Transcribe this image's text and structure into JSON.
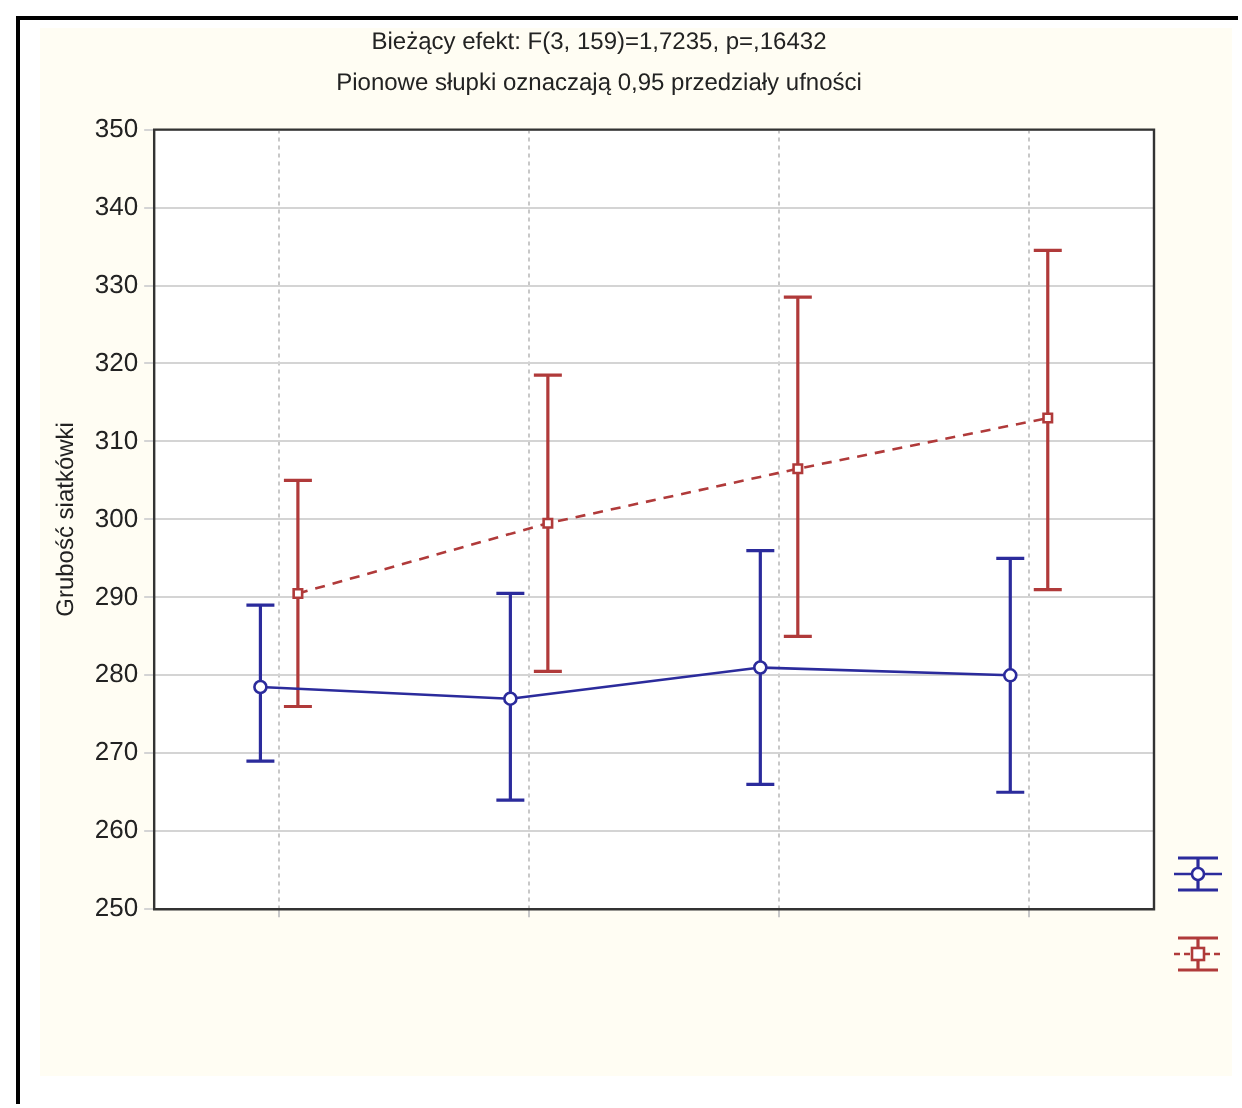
{
  "chart_data": {
    "type": "line",
    "title": "Bieżący efekt: F(3, 159)=1,7235, p=,16432",
    "subtitle": "Pionowe słupki oznaczają 0,95 przedziały ufności",
    "ylabel": "Grubość siatkówki",
    "categories": [
      null,
      null,
      null,
      null
    ],
    "ylim": [
      250,
      350
    ],
    "yticks": [
      250,
      260,
      270,
      280,
      290,
      300,
      310,
      320,
      330,
      340,
      350
    ],
    "grid": true,
    "series": [
      {
        "color": "#2b2b9c",
        "marker": "circle",
        "line_style": "solid",
        "values": [
          278.5,
          277,
          281,
          280
        ],
        "errors": [
          [
            269,
            289
          ],
          [
            264,
            290.5
          ],
          [
            266,
            296
          ],
          [
            265,
            295
          ]
        ]
      },
      {
        "color": "#b03a3a",
        "marker": "square",
        "line_style": "dashed",
        "values": [
          290.5,
          299.5,
          306.5,
          313
        ],
        "errors": [
          [
            276,
            305
          ],
          [
            280.5,
            318.5
          ],
          [
            285,
            328.5
          ],
          [
            291,
            334.5
          ]
        ]
      }
    ]
  }
}
